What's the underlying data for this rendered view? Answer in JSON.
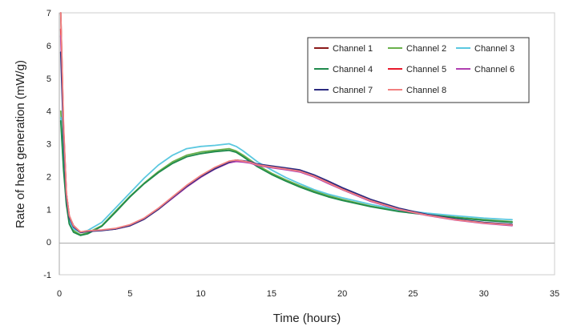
{
  "chart_data": {
    "type": "line",
    "title": "",
    "xlabel": "Time (hours)",
    "ylabel": "Rate of heat generation (mW/g)",
    "xlim": [
      0,
      35
    ],
    "ylim": [
      -1,
      7
    ],
    "xticks": [
      "0",
      "5",
      "10",
      "15",
      "20",
      "25",
      "30",
      "35"
    ],
    "yticks": [
      "-1",
      "0",
      "1",
      "2",
      "3",
      "4",
      "5",
      "6",
      "7"
    ],
    "grid": false,
    "legend_position": "top-right",
    "series": [
      {
        "name": "Channel 1",
        "color": "#8b1a1a",
        "x": [
          0.1,
          0.3,
          0.5,
          0.7,
          1.0,
          1.5,
          2.0,
          3,
          4,
          5,
          6,
          7,
          8,
          9,
          10,
          11,
          12,
          12.5,
          13,
          13.5,
          14,
          15,
          16,
          17,
          18,
          19,
          20,
          22,
          24,
          26,
          28,
          30,
          32
        ],
        "y": [
          7,
          3.5,
          1.5,
          0.8,
          0.5,
          0.3,
          0.33,
          0.36,
          0.4,
          0.5,
          0.7,
          1.0,
          1.35,
          1.7,
          2.0,
          2.25,
          2.45,
          2.48,
          2.45,
          2.42,
          2.35,
          2.28,
          2.22,
          2.15,
          2.0,
          1.8,
          1.6,
          1.25,
          1.0,
          0.82,
          0.68,
          0.58,
          0.52
        ]
      },
      {
        "name": "Channel 2",
        "color": "#6ab04c",
        "x": [
          0.1,
          0.3,
          0.5,
          0.7,
          1.0,
          1.5,
          2.0,
          3,
          4,
          5,
          6,
          7,
          8,
          9,
          10,
          11,
          12,
          12.5,
          13,
          14,
          15,
          16,
          17,
          18,
          19,
          20,
          22,
          24,
          26,
          28,
          30,
          32
        ],
        "y": [
          4,
          2.5,
          1.3,
          0.6,
          0.35,
          0.22,
          0.28,
          0.5,
          0.95,
          1.4,
          1.8,
          2.15,
          2.45,
          2.65,
          2.75,
          2.8,
          2.85,
          2.78,
          2.65,
          2.35,
          2.1,
          1.9,
          1.72,
          1.56,
          1.42,
          1.3,
          1.1,
          0.95,
          0.85,
          0.76,
          0.68,
          0.62
        ]
      },
      {
        "name": "Channel 3",
        "color": "#5bc8e0",
        "x": [
          0.1,
          0.3,
          0.5,
          0.7,
          1.0,
          1.5,
          2.0,
          3,
          4,
          5,
          6,
          7,
          8,
          9,
          10,
          11,
          12,
          12.5,
          13,
          14,
          15,
          16,
          17,
          18,
          19,
          20,
          22,
          24,
          26,
          28,
          30,
          32
        ],
        "y": [
          3.8,
          2.3,
          1.2,
          0.65,
          0.4,
          0.3,
          0.35,
          0.6,
          1.05,
          1.5,
          1.95,
          2.35,
          2.65,
          2.85,
          2.92,
          2.95,
          3.0,
          2.92,
          2.78,
          2.45,
          2.2,
          1.97,
          1.78,
          1.6,
          1.46,
          1.35,
          1.15,
          0.98,
          0.88,
          0.8,
          0.73,
          0.68
        ]
      },
      {
        "name": "Channel 4",
        "color": "#1f8a4c",
        "x": [
          0.1,
          0.3,
          0.5,
          0.7,
          1.0,
          1.5,
          2.0,
          3,
          4,
          5,
          6,
          7,
          8,
          9,
          10,
          11,
          12,
          12.5,
          13,
          14,
          15,
          16,
          17,
          18,
          19,
          20,
          22,
          24,
          26,
          28,
          30,
          32
        ],
        "y": [
          3.7,
          2.2,
          1.15,
          0.55,
          0.3,
          0.2,
          0.25,
          0.48,
          0.92,
          1.38,
          1.78,
          2.12,
          2.4,
          2.6,
          2.7,
          2.76,
          2.8,
          2.74,
          2.6,
          2.3,
          2.06,
          1.86,
          1.68,
          1.52,
          1.38,
          1.27,
          1.08,
          0.93,
          0.83,
          0.74,
          0.66,
          0.6
        ]
      },
      {
        "name": "Channel 5",
        "color": "#e8192c",
        "x": [
          0.1,
          0.3,
          0.5,
          0.7,
          1.0,
          1.5,
          2.0,
          3,
          4,
          5,
          6,
          7,
          8,
          9,
          10,
          11,
          12,
          12.5,
          13,
          13.5,
          14,
          15,
          16,
          17,
          18,
          19,
          20,
          22,
          24,
          26,
          28,
          30,
          32
        ],
        "y": [
          6.5,
          3.4,
          1.45,
          0.78,
          0.48,
          0.3,
          0.33,
          0.36,
          0.41,
          0.52,
          0.72,
          1.02,
          1.37,
          1.72,
          2.02,
          2.27,
          2.46,
          2.5,
          2.47,
          2.44,
          2.37,
          2.3,
          2.24,
          2.17,
          2.02,
          1.82,
          1.62,
          1.27,
          1.01,
          0.83,
          0.69,
          0.59,
          0.53
        ]
      },
      {
        "name": "Channel 6",
        "color": "#b03fb0",
        "x": [
          0.1,
          0.3,
          0.5,
          0.7,
          1.0,
          1.5,
          2.0,
          3,
          4,
          5,
          6,
          7,
          8,
          9,
          10,
          11,
          12,
          12.5,
          13,
          13.5,
          14,
          15,
          16,
          17,
          18,
          19,
          20,
          22,
          24,
          26,
          28,
          30,
          32
        ],
        "y": [
          6.3,
          3.3,
          1.42,
          0.76,
          0.47,
          0.3,
          0.33,
          0.36,
          0.4,
          0.5,
          0.7,
          1.0,
          1.34,
          1.68,
          1.98,
          2.23,
          2.42,
          2.46,
          2.44,
          2.41,
          2.34,
          2.27,
          2.21,
          2.14,
          1.99,
          1.79,
          1.6,
          1.24,
          0.99,
          0.81,
          0.67,
          0.57,
          0.5
        ]
      },
      {
        "name": "Channel 7",
        "color": "#2b2a80",
        "x": [
          0.1,
          0.3,
          0.5,
          0.7,
          1.0,
          1.5,
          2.0,
          3,
          4,
          5,
          6,
          7,
          8,
          9,
          10,
          11,
          12,
          12.5,
          13,
          13.5,
          14,
          15,
          16,
          17,
          18,
          19,
          20,
          22,
          24,
          26,
          28,
          30,
          32
        ],
        "y": [
          5.8,
          3.2,
          1.4,
          0.75,
          0.46,
          0.29,
          0.32,
          0.35,
          0.4,
          0.5,
          0.7,
          1.0,
          1.36,
          1.7,
          2.0,
          2.24,
          2.44,
          2.5,
          2.48,
          2.45,
          2.38,
          2.32,
          2.26,
          2.2,
          2.05,
          1.86,
          1.66,
          1.3,
          1.03,
          0.84,
          0.7,
          0.6,
          0.54
        ]
      },
      {
        "name": "Channel 8",
        "color": "#f28080",
        "x": [
          0.1,
          0.3,
          0.5,
          0.7,
          1.0,
          1.5,
          2.0,
          3,
          4,
          5,
          6,
          7,
          8,
          9,
          10,
          11,
          12,
          12.5,
          13,
          13.5,
          14,
          15,
          16,
          17,
          18,
          19,
          20,
          22,
          24,
          26,
          28,
          30,
          32
        ],
        "y": [
          7,
          3.6,
          1.5,
          0.8,
          0.49,
          0.31,
          0.34,
          0.37,
          0.42,
          0.53,
          0.73,
          1.03,
          1.38,
          1.73,
          2.03,
          2.28,
          2.47,
          2.5,
          2.47,
          2.43,
          2.36,
          2.29,
          2.23,
          2.16,
          2.01,
          1.81,
          1.61,
          1.26,
          1.0,
          0.82,
          0.68,
          0.58,
          0.52
        ]
      }
    ]
  }
}
